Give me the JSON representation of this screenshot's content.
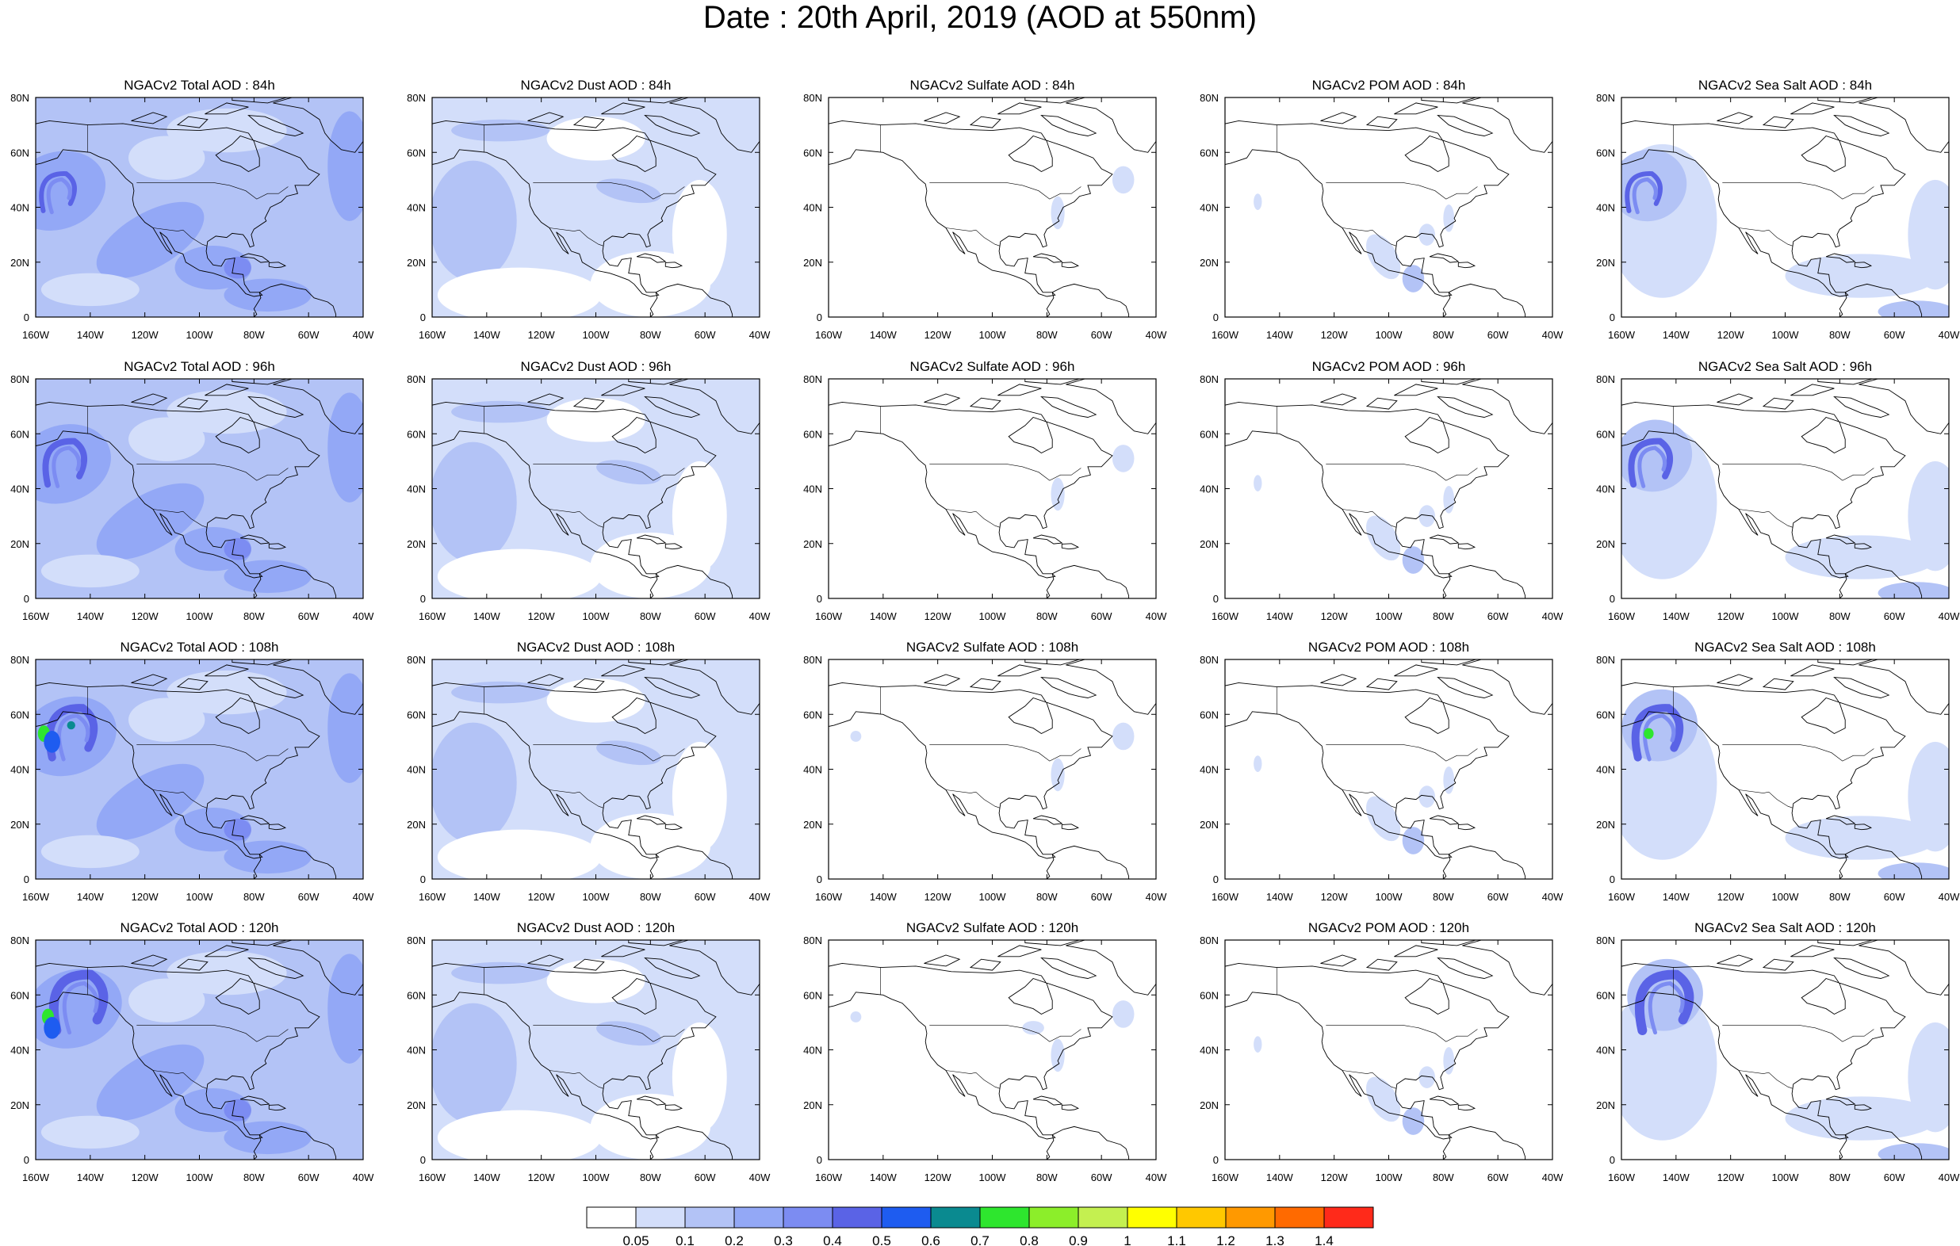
{
  "title": "Date : 20th April, 2019 (AOD at 550nm)",
  "x_ticks": [
    "160W",
    "140W",
    "120W",
    "100W",
    "80W",
    "60W",
    "40W"
  ],
  "y_ticks": [
    "80N",
    "60N",
    "40N",
    "20N",
    "0"
  ],
  "map_extent": {
    "lon": [
      -160,
      -40
    ],
    "lat": [
      0,
      80
    ]
  },
  "panels": [
    [
      {
        "title": "NGACv2 Total AOD : 84h",
        "product": "total"
      },
      {
        "title": "NGACv2 Dust AOD : 84h",
        "product": "dust"
      },
      {
        "title": "NGACv2 Sulfate AOD : 84h",
        "product": "sulfate"
      },
      {
        "title": "NGACv2 POM AOD : 84h",
        "product": "pom"
      },
      {
        "title": "NGACv2 Sea Salt AOD : 84h",
        "product": "seasalt"
      }
    ],
    [
      {
        "title": "NGACv2 Total AOD : 96h",
        "product": "total"
      },
      {
        "title": "NGACv2 Dust AOD : 96h",
        "product": "dust"
      },
      {
        "title": "NGACv2 Sulfate AOD : 96h",
        "product": "sulfate"
      },
      {
        "title": "NGACv2 POM AOD : 96h",
        "product": "pom"
      },
      {
        "title": "NGACv2 Sea Salt AOD : 96h",
        "product": "seasalt"
      }
    ],
    [
      {
        "title": "NGACv2 Total AOD : 108h",
        "product": "total"
      },
      {
        "title": "NGACv2 Dust AOD : 108h",
        "product": "dust"
      },
      {
        "title": "NGACv2 Sulfate AOD : 108h",
        "product": "sulfate"
      },
      {
        "title": "NGACv2 POM AOD : 108h",
        "product": "pom"
      },
      {
        "title": "NGACv2 Sea Salt AOD : 108h",
        "product": "seasalt"
      }
    ],
    [
      {
        "title": "NGACv2 Total AOD : 120h",
        "product": "total"
      },
      {
        "title": "NGACv2 Dust AOD : 120h",
        "product": "dust"
      },
      {
        "title": "NGACv2 Sulfate AOD : 120h",
        "product": "sulfate"
      },
      {
        "title": "NGACv2 POM AOD : 120h",
        "product": "pom"
      },
      {
        "title": "NGACv2 Sea Salt  AOD : 120h",
        "product": "seasalt"
      }
    ]
  ],
  "colorbar": {
    "labels": [
      "0.05",
      "0.1",
      "0.2",
      "0.3",
      "0.4",
      "0.5",
      "0.6",
      "0.7",
      "0.8",
      "0.9",
      "1",
      "1.1",
      "1.2",
      "1.3",
      "1.4"
    ],
    "colors": [
      "#ffffff",
      "#d3defa",
      "#b3c3f6",
      "#93a8f6",
      "#7c8cf2",
      "#5a63e6",
      "#1e5cf0",
      "#0a8a90",
      "#2ee62e",
      "#8cee2a",
      "#c4f050",
      "#ffff00",
      "#ffc800",
      "#ff9900",
      "#ff6a00",
      "#ff2a1a"
    ]
  }
}
